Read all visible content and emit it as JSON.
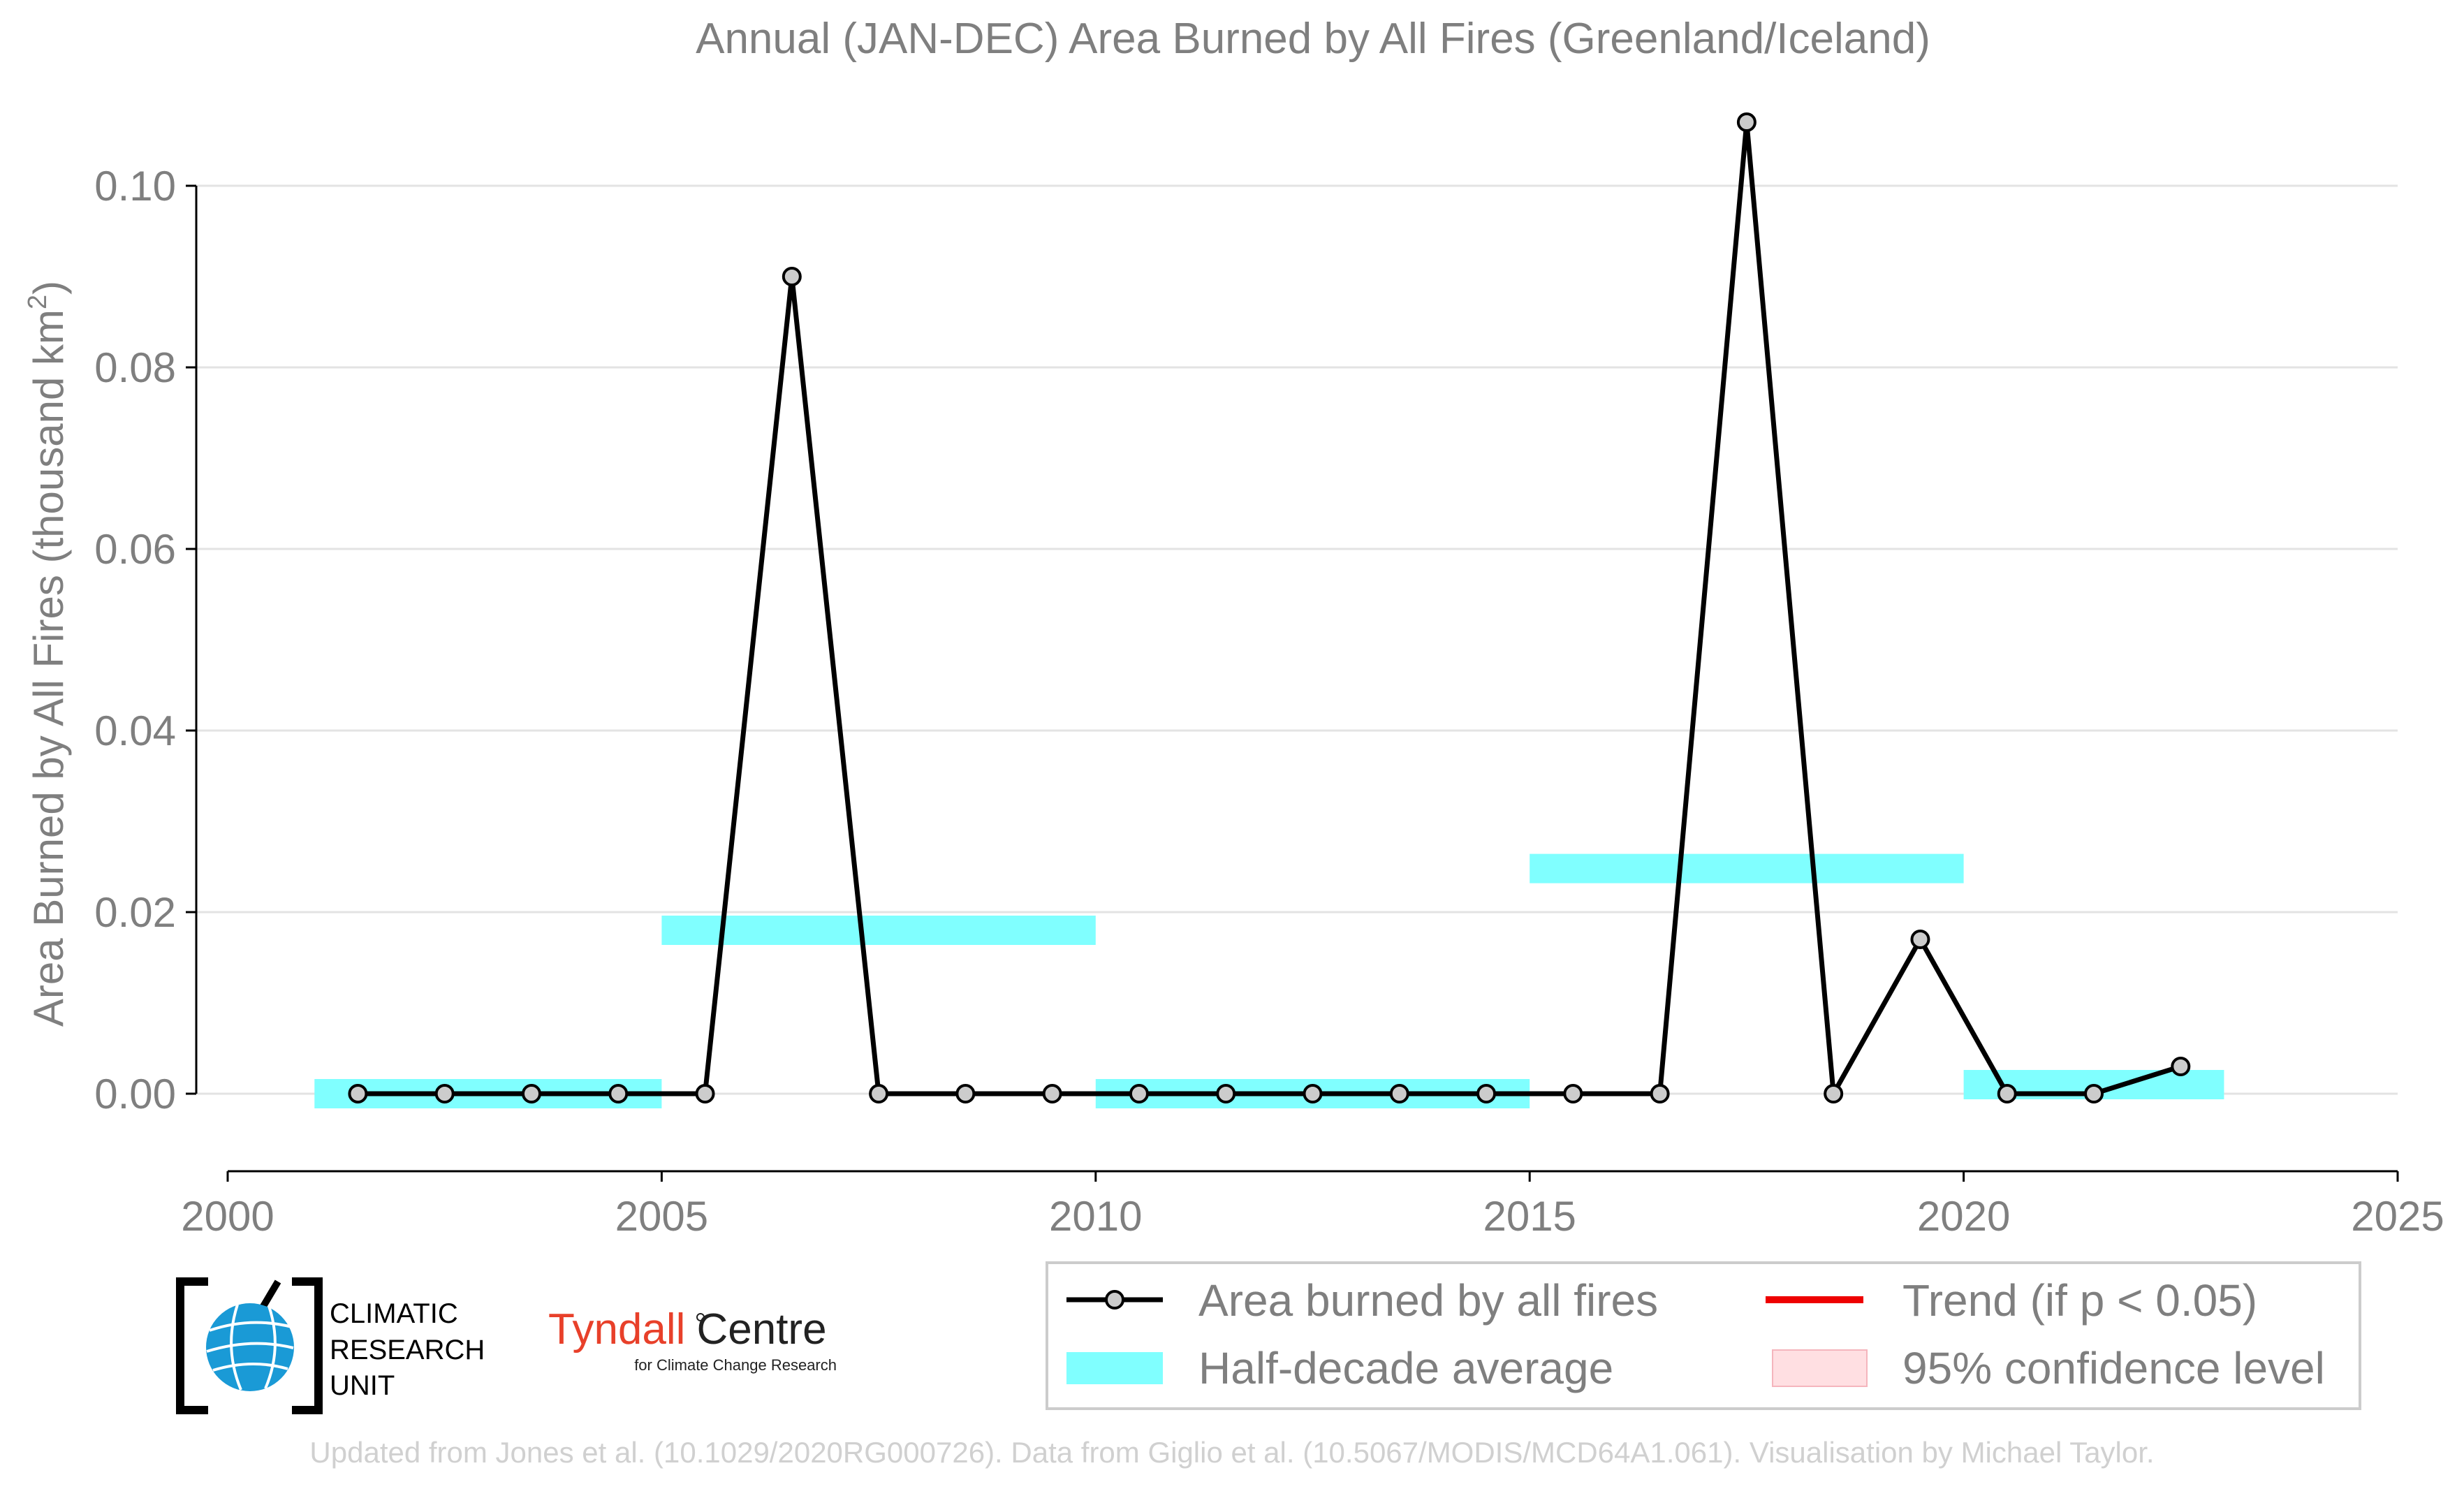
{
  "chart_data": {
    "type": "line",
    "title": "Annual (JAN-DEC) Area Burned by All Fires (Greenland/Iceland)",
    "ylabel": "Area Burned by All Fires (thousand km",
    "ylabel_sup": "2",
    "ylabel_close": ")",
    "xlabel": "",
    "xlim": [
      2000,
      2025
    ],
    "ylim": [
      -0.009,
      0.112
    ],
    "x_ticks": [
      2000,
      2005,
      2010,
      2015,
      2020,
      2025
    ],
    "x_tick_labels": [
      "2000",
      "2005",
      "2010",
      "2015",
      "2020",
      "2025"
    ],
    "y_ticks": [
      0.0,
      0.02,
      0.04,
      0.06,
      0.08,
      0.1
    ],
    "y_tick_labels": [
      "0.00",
      "0.02",
      "0.04",
      "0.06",
      "0.08",
      "0.10"
    ],
    "grid": "horizontal",
    "series": [
      {
        "name": "Area burned by all fires",
        "color": "#000000",
        "marker_fill": "#cccccc",
        "x": [
          2001.5,
          2002.5,
          2003.5,
          2004.5,
          2005.5,
          2006.5,
          2007.5,
          2008.5,
          2009.5,
          2010.5,
          2011.5,
          2012.5,
          2013.5,
          2014.5,
          2015.5,
          2016.5,
          2017.5,
          2018.5,
          2019.5,
          2020.5,
          2021.5,
          2022.5
        ],
        "values": [
          0.0,
          0.0,
          0.0,
          0.0,
          0.0,
          0.09,
          0.0,
          0.0,
          0.0,
          0.0,
          0.0,
          0.0,
          0.0,
          0.0,
          0.0,
          0.0,
          0.107,
          0.0,
          0.017,
          0.0,
          0.0,
          0.003
        ]
      }
    ],
    "half_decade_averages": [
      {
        "x_start": 2001,
        "x_end": 2005,
        "value": 0.0
      },
      {
        "x_start": 2005,
        "x_end": 2010,
        "value": 0.018
      },
      {
        "x_start": 2010,
        "x_end": 2015,
        "value": 0.0
      },
      {
        "x_start": 2015,
        "x_end": 2020,
        "value": 0.0248
      },
      {
        "x_start": 2020,
        "x_end": 2023,
        "value": 0.001
      }
    ],
    "half_decade_color": "#80ffff",
    "trend_color": "#ee0000",
    "confidence_color": "#ffdfe2",
    "legend": {
      "placement": "bottom-right",
      "entries": [
        "Area burned by all fires",
        "Trend (if p < 0.05)",
        "Half-decade average",
        "95% confidence level"
      ]
    }
  },
  "logos": {
    "cru_lines": [
      "CLIMATIC",
      "RESEARCH",
      "UNIT"
    ],
    "tyndall_main": "Tyndall",
    "tyndall_centre": "Centre",
    "tyndall_sub": "for Climate Change Research"
  },
  "footer": "Updated from Jones et al. (10.1029/2020RG000726). Data from Giglio et al. (10.5067/MODIS/MCD64A1.061). Visualisation by Michael Taylor."
}
